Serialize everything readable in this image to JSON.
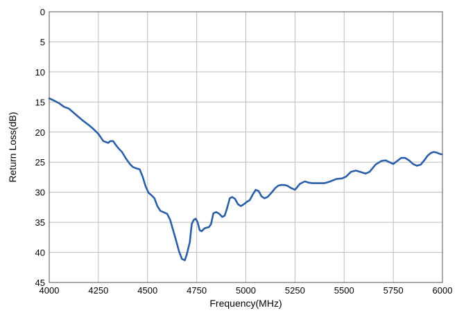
{
  "chart_data": {
    "type": "line",
    "title": "",
    "xlabel": "Frequency(MHz)",
    "ylabel": "Return Loss(dB)",
    "xlim": [
      4000,
      6000
    ],
    "ylim": [
      0,
      45
    ],
    "y_inverted": true,
    "grid": true,
    "legend": "none",
    "x_ticks": [
      "4000",
      "4250",
      "4500",
      "4750",
      "5000",
      "5250",
      "5500",
      "5750",
      "6000"
    ],
    "y_ticks": [
      "0",
      "5",
      "10",
      "15",
      "20",
      "25",
      "30",
      "35",
      "40",
      "45"
    ],
    "line_color": "#2a5fa8",
    "series": [
      {
        "x": [
          4000,
          4020,
          4050,
          4075,
          4100,
          4125,
          4150,
          4175,
          4200,
          4225,
          4250,
          4275,
          4300,
          4310,
          4325,
          4340,
          4355,
          4370,
          4390,
          4410,
          4425,
          4440,
          4460,
          4475,
          4490,
          4505,
          4520,
          4535,
          4550,
          4565,
          4580,
          4600,
          4615,
          4630,
          4645,
          4660,
          4675,
          4690,
          4700,
          4715,
          4725,
          4735,
          4745,
          4755,
          4765,
          4775,
          4790,
          4800,
          4812,
          4823,
          4835,
          4850,
          4865,
          4880,
          4892,
          4905,
          4918,
          4930,
          4945,
          4960,
          4975,
          4990,
          5005,
          5020,
          5035,
          5050,
          5065,
          5080,
          5095,
          5110,
          5130,
          5150,
          5165,
          5180,
          5195,
          5210,
          5230,
          5250,
          5275,
          5300,
          5320,
          5340,
          5360,
          5380,
          5400,
          5430,
          5460,
          5490,
          5510,
          5535,
          5560,
          5590,
          5610,
          5630,
          5660,
          5690,
          5710,
          5730,
          5750,
          5770,
          5790,
          5810,
          5830,
          5850,
          5870,
          5890,
          5910,
          5925,
          5940,
          5955,
          5970,
          5985,
          5995
        ],
        "values": [
          14.4,
          14.7,
          15.2,
          15.8,
          16.1,
          16.8,
          17.5,
          18.2,
          18.8,
          19.5,
          20.3,
          21.5,
          21.8,
          21.5,
          21.5,
          22.2,
          22.8,
          23.3,
          24.4,
          25.3,
          25.8,
          26.0,
          26.2,
          27.4,
          29.0,
          30.1,
          30.5,
          31.0,
          32.3,
          33.1,
          33.3,
          33.6,
          34.6,
          36.3,
          38.0,
          39.8,
          41.1,
          41.3,
          40.3,
          38.3,
          35.3,
          34.6,
          34.4,
          35.0,
          36.3,
          36.5,
          36.0,
          35.9,
          35.8,
          35.3,
          33.5,
          33.3,
          33.6,
          34.1,
          33.9,
          32.6,
          31.0,
          30.8,
          31.1,
          32.0,
          32.3,
          32.0,
          31.6,
          31.3,
          30.4,
          29.6,
          29.8,
          30.7,
          31.0,
          30.8,
          30.1,
          29.3,
          28.9,
          28.8,
          28.8,
          28.9,
          29.3,
          29.6,
          28.6,
          28.2,
          28.4,
          28.5,
          28.5,
          28.5,
          28.5,
          28.2,
          27.8,
          27.7,
          27.4,
          26.6,
          26.4,
          26.7,
          26.9,
          26.6,
          25.4,
          24.8,
          24.7,
          25.0,
          25.3,
          24.8,
          24.3,
          24.3,
          24.7,
          25.3,
          25.6,
          25.4,
          24.6,
          23.9,
          23.5,
          23.3,
          23.4,
          23.6,
          23.7
        ]
      }
    ]
  }
}
